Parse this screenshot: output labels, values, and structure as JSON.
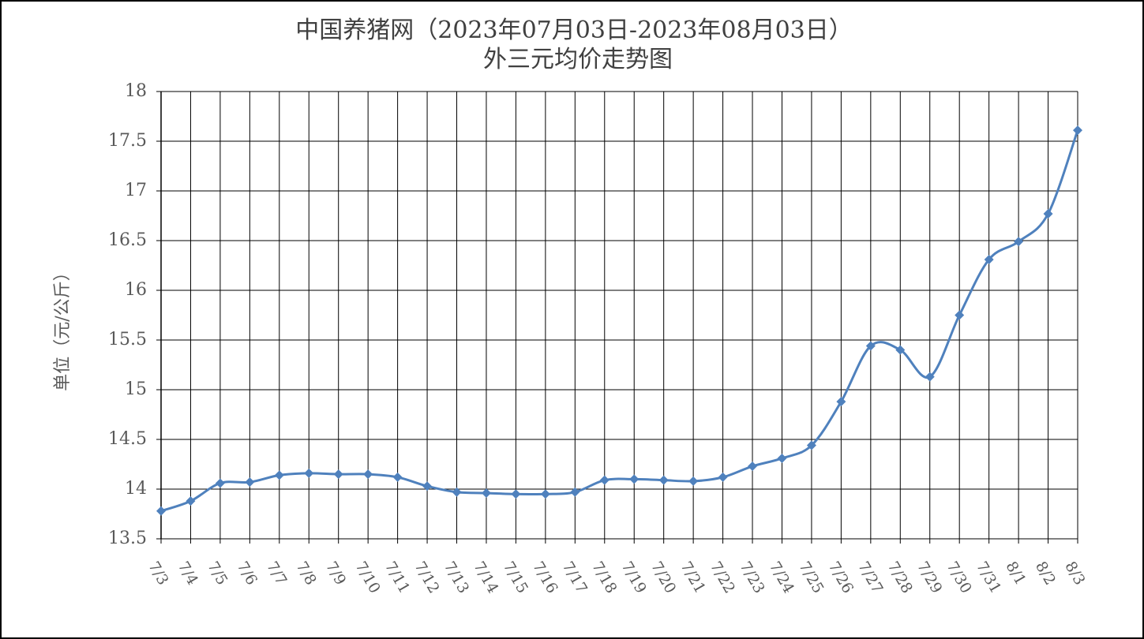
{
  "chart_data": {
    "type": "line",
    "title": "中国养猪网（2023年07月03日-2023年08月03日）",
    "subtitle": "外三元均价走势图",
    "y_label": "单位（元/公斤）",
    "categories": [
      "7/3",
      "7/4",
      "7/5",
      "7/6",
      "7/7",
      "7/8",
      "7/9",
      "7/10",
      "7/11",
      "7/12",
      "7/13",
      "7/14",
      "7/15",
      "7/16",
      "7/17",
      "7/18",
      "7/19",
      "7/20",
      "7/21",
      "7/22",
      "7/23",
      "7/24",
      "7/25",
      "7/26",
      "7/27",
      "7/28",
      "7/29",
      "7/30",
      "7/31",
      "8/1",
      "8/2",
      "8/3"
    ],
    "series": [
      {
        "name": "外三元均价",
        "color": "#4f81bd",
        "values": [
          13.78,
          13.88,
          14.06,
          14.07,
          14.14,
          14.16,
          14.15,
          14.15,
          14.12,
          14.03,
          13.97,
          13.96,
          13.95,
          13.95,
          13.97,
          14.09,
          14.1,
          14.09,
          14.08,
          14.12,
          14.23,
          14.31,
          14.44,
          14.88,
          15.44,
          15.4,
          15.13,
          15.75,
          16.31,
          16.49,
          16.77,
          17.61
        ]
      }
    ],
    "ylim": [
      13.5,
      18
    ],
    "yticks": [
      13.5,
      14,
      14.5,
      15,
      15.5,
      16,
      16.5,
      17,
      17.5,
      18
    ],
    "grid": true,
    "smooth": true
  }
}
